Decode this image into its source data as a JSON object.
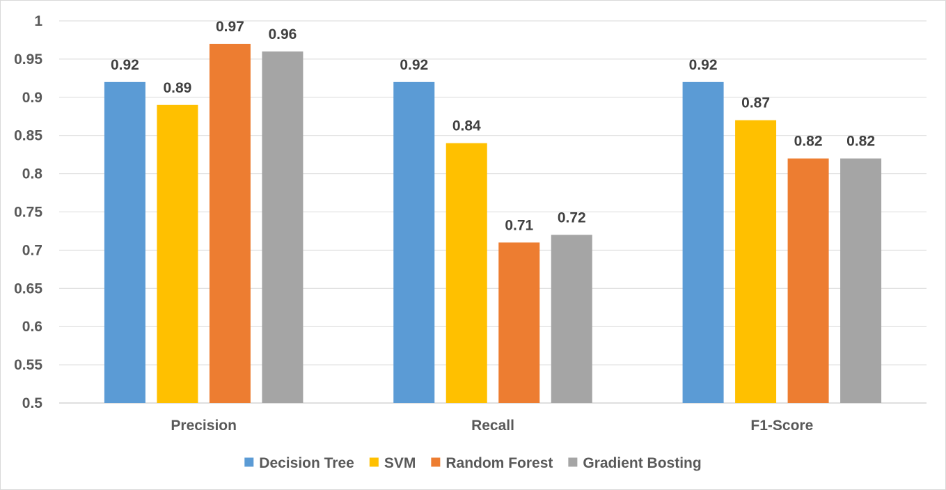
{
  "chart_data": {
    "type": "bar",
    "title": "",
    "xlabel": "",
    "ylabel": "",
    "categories": [
      "Precision",
      "Recall",
      "F1-Score"
    ],
    "ylim": [
      0.5,
      1
    ],
    "ytick_step": 0.05,
    "yticks": [
      "0.5",
      "0.55",
      "0.6",
      "0.65",
      "0.7",
      "0.75",
      "0.8",
      "0.85",
      "0.9",
      "0.95",
      "1"
    ],
    "grid": true,
    "legend_position": "bottom",
    "data_labels": true,
    "series": [
      {
        "name": "Decision Tree",
        "color": "#5b9bd5",
        "values": [
          0.92,
          0.92,
          0.92
        ]
      },
      {
        "name": "SVM",
        "color": "#ffc000",
        "values": [
          0.89,
          0.84,
          0.87
        ]
      },
      {
        "name": "Random Forest",
        "color": "#ed7d31",
        "values": [
          0.97,
          0.71,
          0.82
        ]
      },
      {
        "name": "Gradient Bosting",
        "color": "#a5a5a5",
        "values": [
          0.96,
          0.72,
          0.82
        ]
      }
    ]
  }
}
